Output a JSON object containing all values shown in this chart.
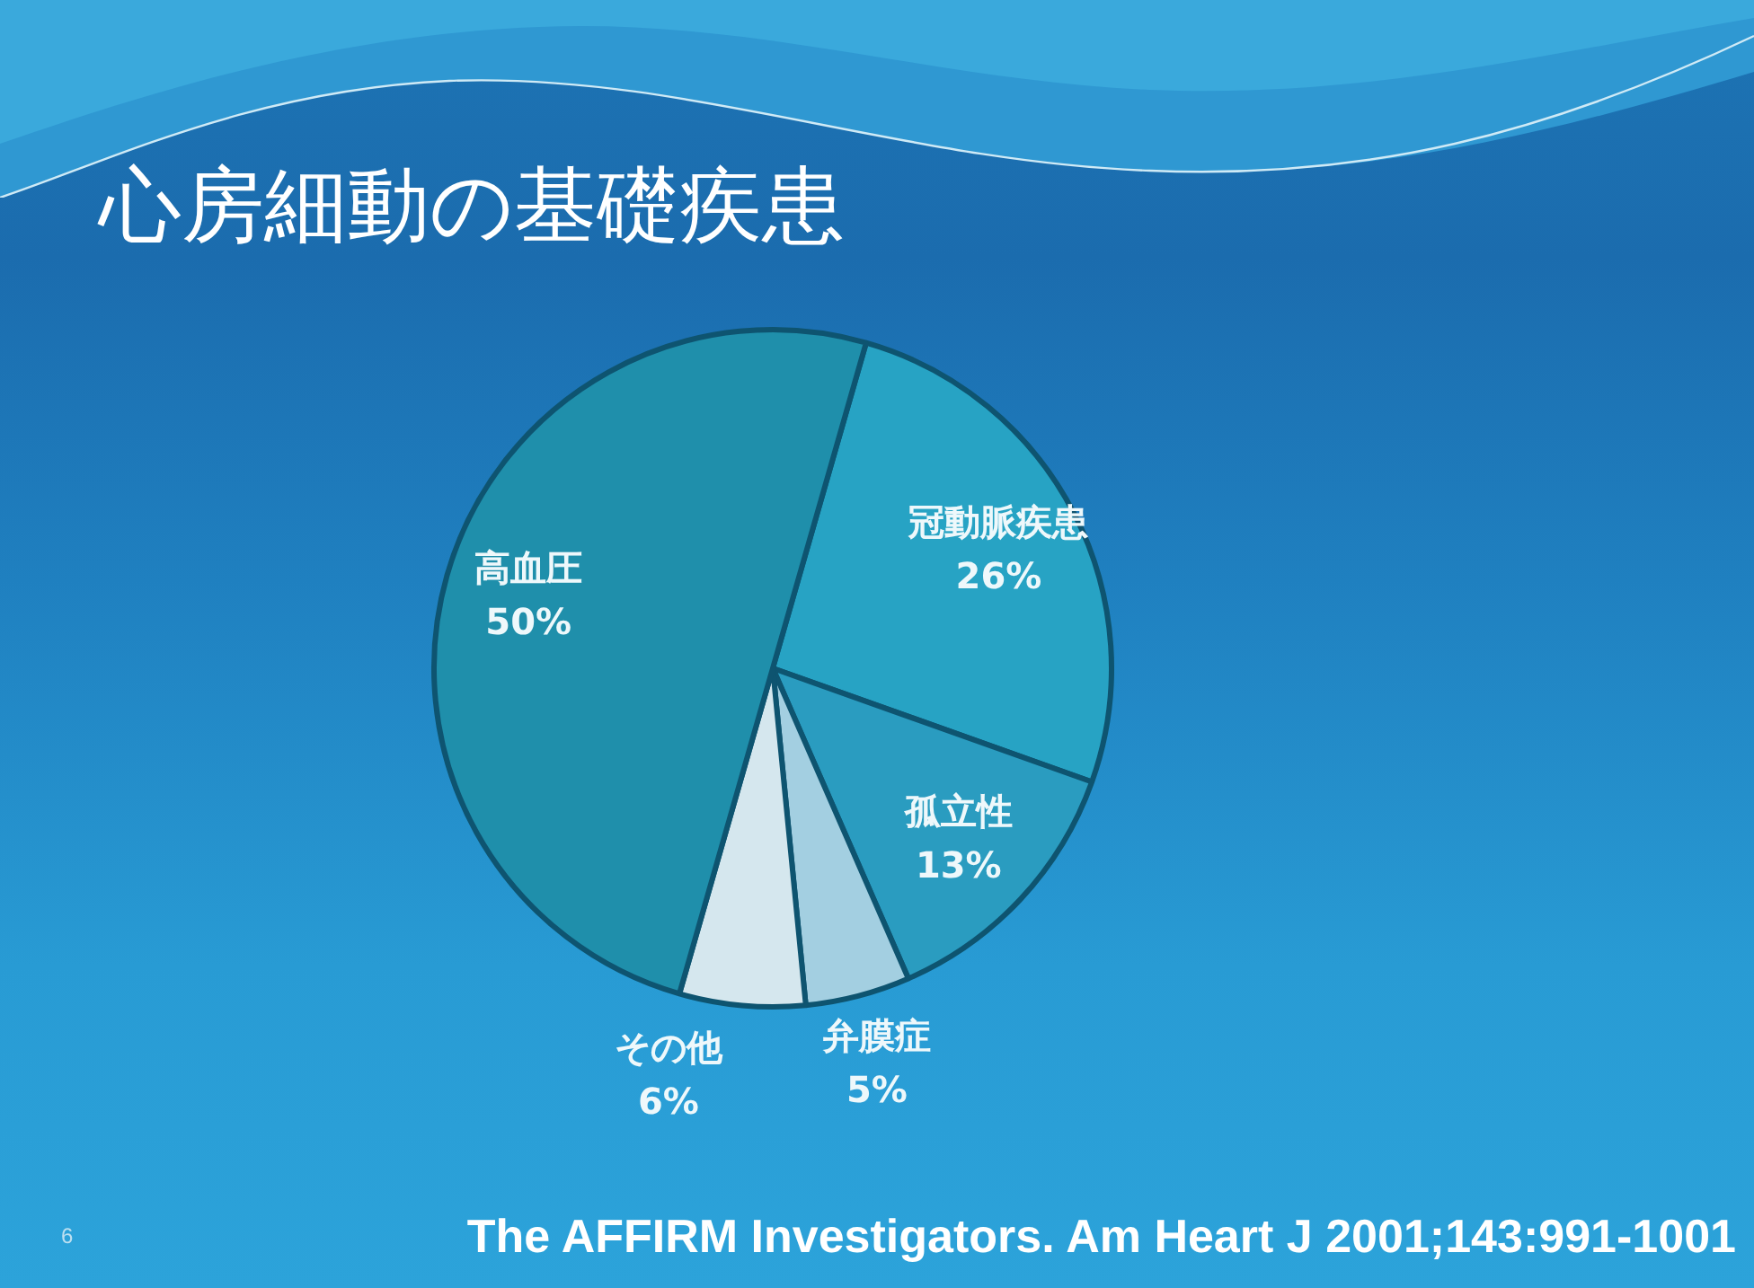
{
  "chart_data": {
    "type": "pie",
    "title": "心房細動の基礎疾患",
    "categories": [
      "冠動脈疾患",
      "孤立性",
      "弁膜症",
      "その他",
      "高血圧"
    ],
    "values": [
      26,
      13,
      5,
      6,
      50
    ],
    "value_labels": [
      "26%",
      "13%",
      "5%",
      "6%",
      "50%"
    ],
    "colors": [
      "#27a3c4",
      "#2a9cc0",
      "#a3cfe1",
      "#d5e7ee",
      "#1f8fab"
    ],
    "annotations": [
      "6",
      "The AFFIRM Investigators. Am Heart J 2001;143:991-1001"
    ]
  }
}
